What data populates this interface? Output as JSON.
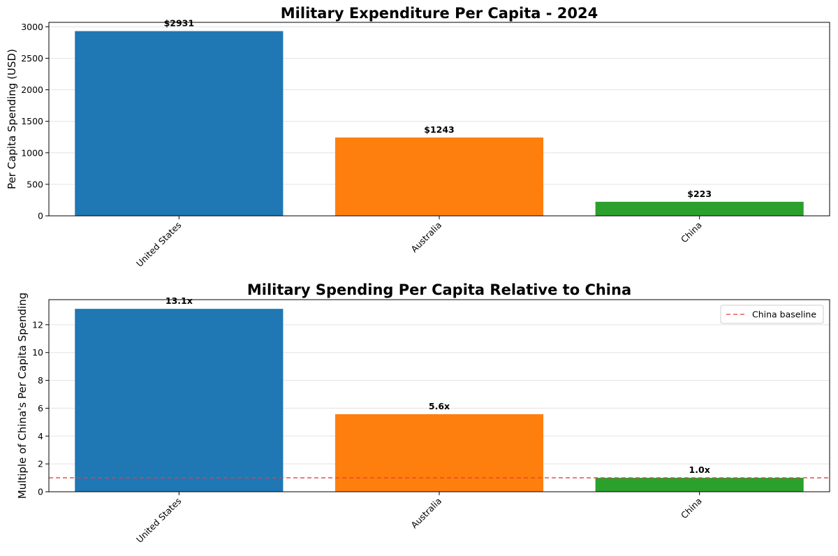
{
  "chart_data": [
    {
      "type": "bar",
      "title": "Military Expenditure Per Capita - 2024",
      "xlabel": "",
      "ylabel": "Per Capita Spending (USD)",
      "categories": [
        "United States",
        "Australia",
        "China"
      ],
      "values": [
        2931,
        1243,
        223
      ],
      "data_labels": [
        "$2931",
        "$1243",
        "$223"
      ],
      "colors": [
        "#1f77b4",
        "#ff7f0e",
        "#2ca02c"
      ],
      "ylim": [
        0,
        3070
      ],
      "yticks": [
        0,
        500,
        1000,
        1500,
        2000,
        2500,
        3000
      ],
      "ytick_labels": [
        "0",
        "500",
        "1000",
        "1500",
        "2000",
        "2500",
        "3000"
      ],
      "grid": "y"
    },
    {
      "type": "bar",
      "title": "Military Spending Per Capita Relative to China",
      "xlabel": "",
      "ylabel": "Multiple of China's Per Capita Spending",
      "categories": [
        "United States",
        "Australia",
        "China"
      ],
      "values": [
        13.14,
        5.57,
        1.0
      ],
      "data_labels": [
        "13.1x",
        "5.6x",
        "1.0x"
      ],
      "colors": [
        "#1f77b4",
        "#ff7f0e",
        "#2ca02c"
      ],
      "ylim": [
        0,
        13.8
      ],
      "yticks": [
        0,
        2,
        4,
        6,
        8,
        10,
        12
      ],
      "ytick_labels": [
        "0",
        "2",
        "4",
        "6",
        "8",
        "10",
        "12"
      ],
      "grid": "y",
      "reference_line": {
        "value": 1.0,
        "label": "China baseline",
        "color": "#e8413c",
        "style": "dashed"
      },
      "legend": {
        "placement": "top-right",
        "entries": [
          "China baseline"
        ]
      }
    }
  ]
}
